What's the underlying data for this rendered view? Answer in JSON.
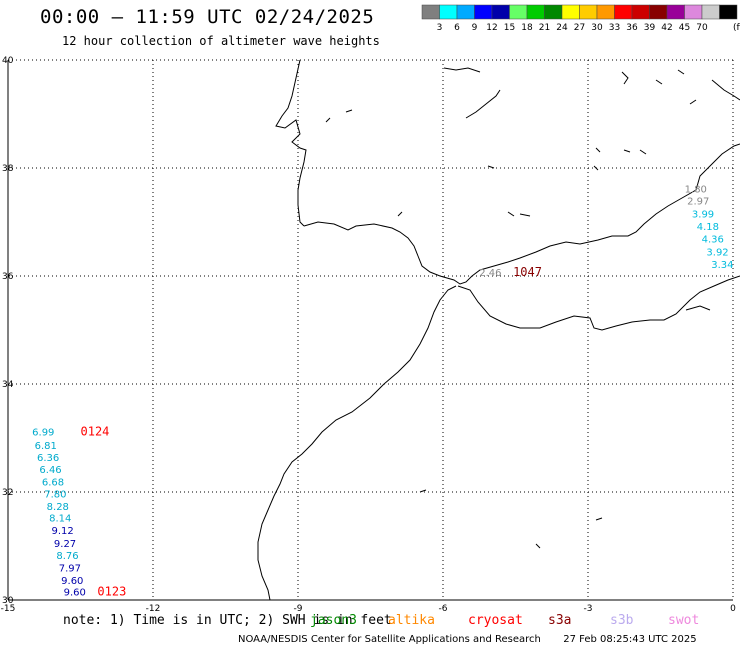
{
  "title": "00:00 – 11:59 UTC 02/24/2025",
  "subtitle": "12 hour collection of altimeter wave heights",
  "color_scale": {
    "unit_label": "(ft)",
    "colors": [
      "#7f7f7f",
      "#00ffff",
      "#00aaff",
      "#0000ff",
      "#0000aa",
      "#66ff66",
      "#00cc00",
      "#008800",
      "#ffff00",
      "#ffcc00",
      "#ff9900",
      "#ff0000",
      "#cc0000",
      "#880000",
      "#990099",
      "#dd88dd",
      "#cccccc",
      "#000000"
    ],
    "ticks": [
      "3",
      "6",
      "9",
      "12",
      "15",
      "18",
      "21",
      "24",
      "27",
      "30",
      "33",
      "36",
      "39",
      "42",
      "45",
      "70"
    ]
  },
  "map": {
    "lon_labels": [
      "-15",
      "-12",
      "-9",
      "-6",
      "-3",
      "0"
    ],
    "lat_labels": [
      "40",
      "38",
      "36",
      "34",
      "32",
      "30"
    ],
    "lon_range": [
      -15,
      0
    ],
    "lat_range": [
      30,
      40
    ]
  },
  "observations": [
    {
      "lon": -1.0,
      "lat": 37.55,
      "value": "1.80",
      "color": "#888888"
    },
    {
      "lon": -0.95,
      "lat": 37.32,
      "value": "2.97",
      "color": "#888888"
    },
    {
      "lon": -0.85,
      "lat": 37.08,
      "value": "3.99",
      "color": "#00bbdd"
    },
    {
      "lon": -0.75,
      "lat": 36.85,
      "value": "4.18",
      "color": "#00bbdd"
    },
    {
      "lon": -0.65,
      "lat": 36.62,
      "value": "4.36",
      "color": "#00bbdd"
    },
    {
      "lon": -0.55,
      "lat": 36.38,
      "value": "3.92",
      "color": "#00bbdd"
    },
    {
      "lon": -0.45,
      "lat": 36.15,
      "value": "3.34",
      "color": "#00bbdd"
    },
    {
      "lon": -5.25,
      "lat": 36.0,
      "value": "2.46",
      "color": "#888888"
    },
    {
      "lon": -14.5,
      "lat": 33.05,
      "value": "6.99",
      "color": "#00aacc"
    },
    {
      "lon": -14.45,
      "lat": 32.8,
      "value": "6.81",
      "color": "#00aacc"
    },
    {
      "lon": -14.4,
      "lat": 32.57,
      "value": "6.36",
      "color": "#00aacc"
    },
    {
      "lon": -14.35,
      "lat": 32.35,
      "value": "6.46",
      "color": "#00aacc"
    },
    {
      "lon": -14.3,
      "lat": 32.12,
      "value": "6.68",
      "color": "#00aacc"
    },
    {
      "lon": -14.25,
      "lat": 31.9,
      "value": "7.80",
      "color": "#00aacc"
    },
    {
      "lon": -14.2,
      "lat": 31.67,
      "value": "8.28",
      "color": "#00aacc"
    },
    {
      "lon": -14.15,
      "lat": 31.45,
      "value": "8.14",
      "color": "#00aacc"
    },
    {
      "lon": -14.1,
      "lat": 31.22,
      "value": "9.12",
      "color": "#0000aa"
    },
    {
      "lon": -14.05,
      "lat": 30.98,
      "value": "9.27",
      "color": "#0000aa"
    },
    {
      "lon": -14.0,
      "lat": 30.76,
      "value": "8.76",
      "color": "#00aacc"
    },
    {
      "lon": -13.95,
      "lat": 30.53,
      "value": "7.97",
      "color": "#0000aa"
    },
    {
      "lon": -13.9,
      "lat": 30.3,
      "value": "9.60",
      "color": "#0000aa"
    },
    {
      "lon": -13.85,
      "lat": 30.08,
      "value": "9.60",
      "color": "#0000aa"
    }
  ],
  "time_labels": [
    {
      "lon": -13.5,
      "lat": 33.05,
      "text": "0124",
      "color": "#ff0000"
    },
    {
      "lon": -13.15,
      "lat": 30.08,
      "text": "0123",
      "color": "#ff0000"
    },
    {
      "lon": -4.55,
      "lat": 36.0,
      "text": "1047",
      "color": "#880000"
    }
  ],
  "footer": {
    "note": "note: 1) Time is in UTC; 2) SWH is in feet",
    "satellites": [
      {
        "name": "jason3",
        "color": "#008800"
      },
      {
        "name": "altika",
        "color": "#ff8800"
      },
      {
        "name": "cryosat",
        "color": "#ff0000"
      },
      {
        "name": "s3a",
        "color": "#880000"
      },
      {
        "name": "s3b",
        "color": "#bbaaee"
      },
      {
        "name": "swot",
        "color": "#ee88dd"
      }
    ],
    "credit": "NOAA/NESDIS Center for Satellite Applications and Research",
    "generated": "27 Feb 08:25:43 UTC 2025"
  }
}
